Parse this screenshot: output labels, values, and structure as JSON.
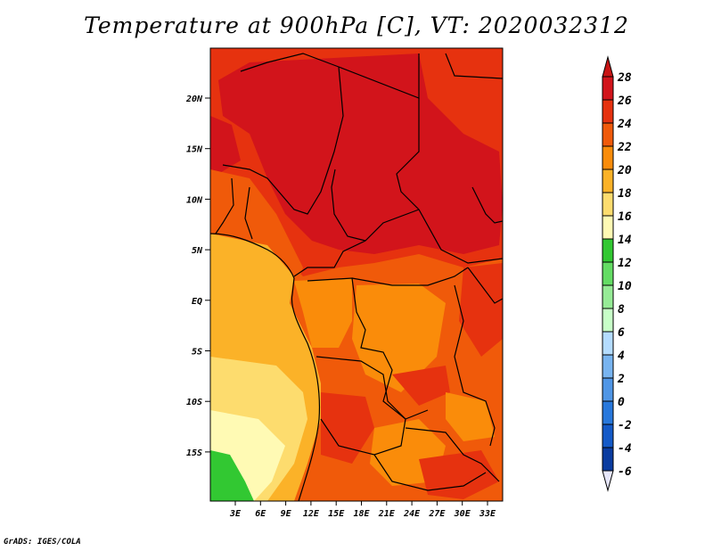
{
  "title": "Temperature at 900hPa [C], VT: 2020032312",
  "footer": "GrADS: IGES/COLA",
  "map": {
    "lat_ticks": [
      "20N",
      "15N",
      "10N",
      "5N",
      "EQ",
      "5S",
      "10S",
      "15S"
    ],
    "lon_ticks": [
      "3E",
      "6E",
      "9E",
      "12E",
      "15E",
      "18E",
      "21E",
      "24E",
      "27E",
      "30E",
      "33E"
    ]
  },
  "colorbar": {
    "levels": [
      "28",
      "26",
      "24",
      "22",
      "20",
      "18",
      "16",
      "14",
      "12",
      "10",
      "8",
      "6",
      "4",
      "2",
      "0",
      "-2",
      "-4",
      "-6"
    ],
    "colors": [
      "#d2141b",
      "#e6320f",
      "#f05a0a",
      "#fa8c0a",
      "#fbb228",
      "#fddc6e",
      "#fffab4",
      "#32c832",
      "#64dc64",
      "#96eb96",
      "#c8ffc8",
      "#b4dcff",
      "#78b4f0",
      "#5096e6",
      "#2878dc",
      "#145ac8",
      "#0a3ca0",
      "#050a6e"
    ],
    "top_color": "#c81414",
    "bottom_color": "#e6e6fa"
  }
}
